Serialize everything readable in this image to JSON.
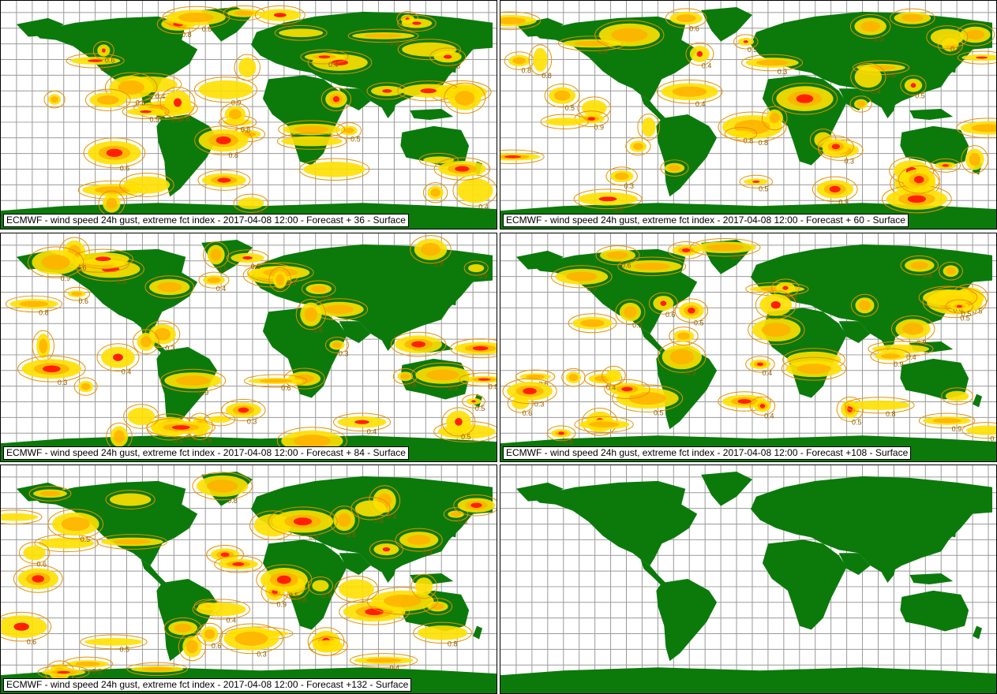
{
  "panels": [
    {
      "caption": "ECMWF - wind speed 24h gust, extreme fct index - 2017-04-08 12:00 - Forecast + 36 - Surface",
      "has_overlay": true
    },
    {
      "caption": "ECMWF - wind speed 24h gust, extreme fct index - 2017-04-08 12:00 - Forecast + 60 - Surface",
      "has_overlay": true
    },
    {
      "caption": "ECMWF - wind speed 24h gust, extreme fct index - 2017-04-08 12:00 - Forecast + 84 - Surface",
      "has_overlay": true
    },
    {
      "caption": "ECMWF - wind speed 24h gust, extreme fct index - 2017-04-08 12:00 - Forecast +108 - Surface",
      "has_overlay": true
    },
    {
      "caption": "ECMWF - wind speed 24h gust, extreme fct index - 2017-04-08 12:00 - Forecast +132 - Surface",
      "has_overlay": true
    },
    {
      "caption": "",
      "has_overlay": false
    }
  ],
  "contour_labels": [
    "0.3",
    "0.4",
    "0.5",
    "0.6",
    "0.8",
    "0.9"
  ],
  "colors": {
    "land": "#0b7a0b",
    "level_low": "#ffe000",
    "level_mid": "#ffb000",
    "level_high": "#ff2000",
    "contour_line": "#e89000",
    "grid": "#9a9a9a"
  }
}
